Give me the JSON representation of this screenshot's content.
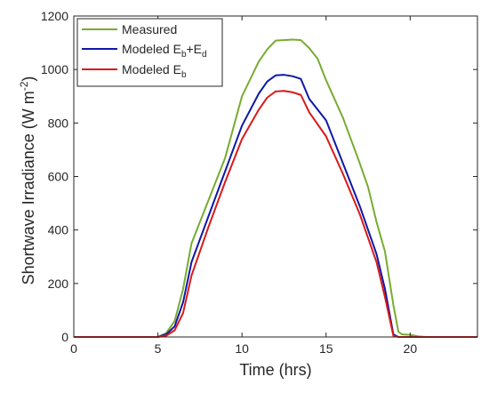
{
  "chart_data": {
    "type": "line",
    "title": "",
    "xlabel": "Time (hrs)",
    "ylabel": {
      "main": "Shortwave Irradiance (W m",
      "sup": "-2",
      "close": ")"
    },
    "xlim": [
      0,
      24
    ],
    "ylim": [
      0,
      1200
    ],
    "xticks": [
      0,
      5,
      10,
      15,
      20
    ],
    "yticks": [
      0,
      200,
      400,
      600,
      800,
      1000,
      1200
    ],
    "grid": false,
    "legend_position": "top-left",
    "series": [
      {
        "name": "Measured",
        "legend": {
          "base": "Measured"
        },
        "color": "#77ac30",
        "points": [
          [
            0,
            0
          ],
          [
            5,
            0
          ],
          [
            5.5,
            15
          ],
          [
            6,
            60
          ],
          [
            6.5,
            180
          ],
          [
            7,
            350
          ],
          [
            8,
            510
          ],
          [
            9,
            670
          ],
          [
            10,
            900
          ],
          [
            11,
            1030
          ],
          [
            11.5,
            1075
          ],
          [
            12,
            1108
          ],
          [
            12.5,
            1110
          ],
          [
            13,
            1112
          ],
          [
            13.5,
            1110
          ],
          [
            14,
            1080
          ],
          [
            14.5,
            1040
          ],
          [
            15,
            960
          ],
          [
            16,
            820
          ],
          [
            17,
            650
          ],
          [
            17.5,
            560
          ],
          [
            18,
            430
          ],
          [
            18.5,
            320
          ],
          [
            19,
            120
          ],
          [
            19.3,
            20
          ],
          [
            19.5,
            10
          ],
          [
            20,
            8
          ],
          [
            20.5,
            2
          ],
          [
            21,
            0
          ],
          [
            24,
            0
          ]
        ]
      },
      {
        "name": "Modeled Eb+Ed",
        "legend": {
          "base": "Modeled E",
          "sub1": "b",
          "mid": "+E",
          "sub2": "d"
        },
        "color": "#0f18a8",
        "points": [
          [
            0,
            0
          ],
          [
            5,
            0
          ],
          [
            5.5,
            10
          ],
          [
            6,
            40
          ],
          [
            6.5,
            130
          ],
          [
            7,
            280
          ],
          [
            8,
            450
          ],
          [
            9,
            620
          ],
          [
            10,
            790
          ],
          [
            11,
            910
          ],
          [
            11.5,
            955
          ],
          [
            12,
            978
          ],
          [
            12.5,
            980
          ],
          [
            13,
            975
          ],
          [
            13.5,
            965
          ],
          [
            14,
            890
          ],
          [
            15,
            810
          ],
          [
            16,
            650
          ],
          [
            17,
            490
          ],
          [
            18,
            310
          ],
          [
            18.5,
            180
          ],
          [
            19,
            10
          ],
          [
            19.3,
            0
          ],
          [
            24,
            0
          ]
        ]
      },
      {
        "name": "Modeled Eb",
        "legend": {
          "base": "Modeled E",
          "sub1": "b"
        },
        "color": "#d91a1a",
        "points": [
          [
            0,
            0
          ],
          [
            5,
            0
          ],
          [
            5.5,
            5
          ],
          [
            6,
            25
          ],
          [
            6.5,
            90
          ],
          [
            7,
            230
          ],
          [
            8,
            410
          ],
          [
            9,
            580
          ],
          [
            10,
            740
          ],
          [
            11,
            850
          ],
          [
            11.5,
            895
          ],
          [
            12,
            918
          ],
          [
            12.5,
            920
          ],
          [
            13,
            915
          ],
          [
            13.5,
            905
          ],
          [
            14,
            840
          ],
          [
            15,
            750
          ],
          [
            16,
            610
          ],
          [
            17,
            460
          ],
          [
            18,
            280
          ],
          [
            18.5,
            150
          ],
          [
            19,
            5
          ],
          [
            19.3,
            0
          ],
          [
            24,
            0
          ]
        ]
      }
    ]
  }
}
